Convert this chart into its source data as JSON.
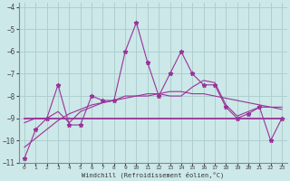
{
  "x": [
    0,
    1,
    2,
    3,
    4,
    5,
    6,
    7,
    8,
    9,
    10,
    11,
    12,
    13,
    14,
    15,
    16,
    17,
    18,
    19,
    20,
    21,
    22,
    23
  ],
  "line1": [
    -10.8,
    -9.5,
    -9.0,
    -7.5,
    -9.3,
    -9.3,
    -8.0,
    -8.2,
    -8.2,
    -6.0,
    -4.7,
    -6.5,
    -8.0,
    -7.0,
    -6.0,
    -7.0,
    -7.5,
    -7.5,
    -8.5,
    -9.0,
    -8.8,
    -8.5,
    -10.0,
    -9.0
  ],
  "line2_flat": [
    -9.0,
    -9.0,
    -9.0,
    -9.0,
    -9.0,
    -9.0,
    -9.0,
    -9.0,
    -9.0,
    -9.0,
    -9.0,
    -9.0,
    -9.0,
    -9.0,
    -9.0,
    -9.0,
    -9.0,
    -9.0,
    -9.0,
    -9.0,
    -9.0,
    -9.0,
    -9.0,
    -9.0
  ],
  "line3_smooth": [
    -9.2,
    -9.0,
    -9.0,
    -8.7,
    -9.2,
    -8.7,
    -8.5,
    -8.3,
    -8.2,
    -8.0,
    -8.0,
    -8.0,
    -7.9,
    -8.0,
    -8.0,
    -7.6,
    -7.3,
    -7.4,
    -8.4,
    -8.9,
    -8.7,
    -8.5,
    -8.5,
    -8.5
  ],
  "line4_trend": [
    -10.3,
    -9.9,
    -9.5,
    -9.1,
    -8.8,
    -8.6,
    -8.4,
    -8.3,
    -8.2,
    -8.1,
    -8.0,
    -7.9,
    -7.9,
    -7.8,
    -7.8,
    -7.9,
    -7.9,
    -8.0,
    -8.1,
    -8.2,
    -8.3,
    -8.4,
    -8.5,
    -8.6
  ],
  "color": "#993399",
  "bg_color": "#cce8e8",
  "grid_color": "#aacccc",
  "ylim": [
    -11.0,
    -3.8
  ],
  "xlim": [
    -0.5,
    23.5
  ],
  "yticks": [
    -4,
    -5,
    -6,
    -7,
    -8,
    -9,
    -10,
    -11
  ],
  "xticks": [
    0,
    1,
    2,
    3,
    4,
    5,
    6,
    7,
    8,
    9,
    10,
    11,
    12,
    13,
    14,
    15,
    16,
    17,
    18,
    19,
    20,
    21,
    22,
    23
  ],
  "xlabel": "Windchill (Refroidissement éolien,°C)",
  "marker": "*"
}
